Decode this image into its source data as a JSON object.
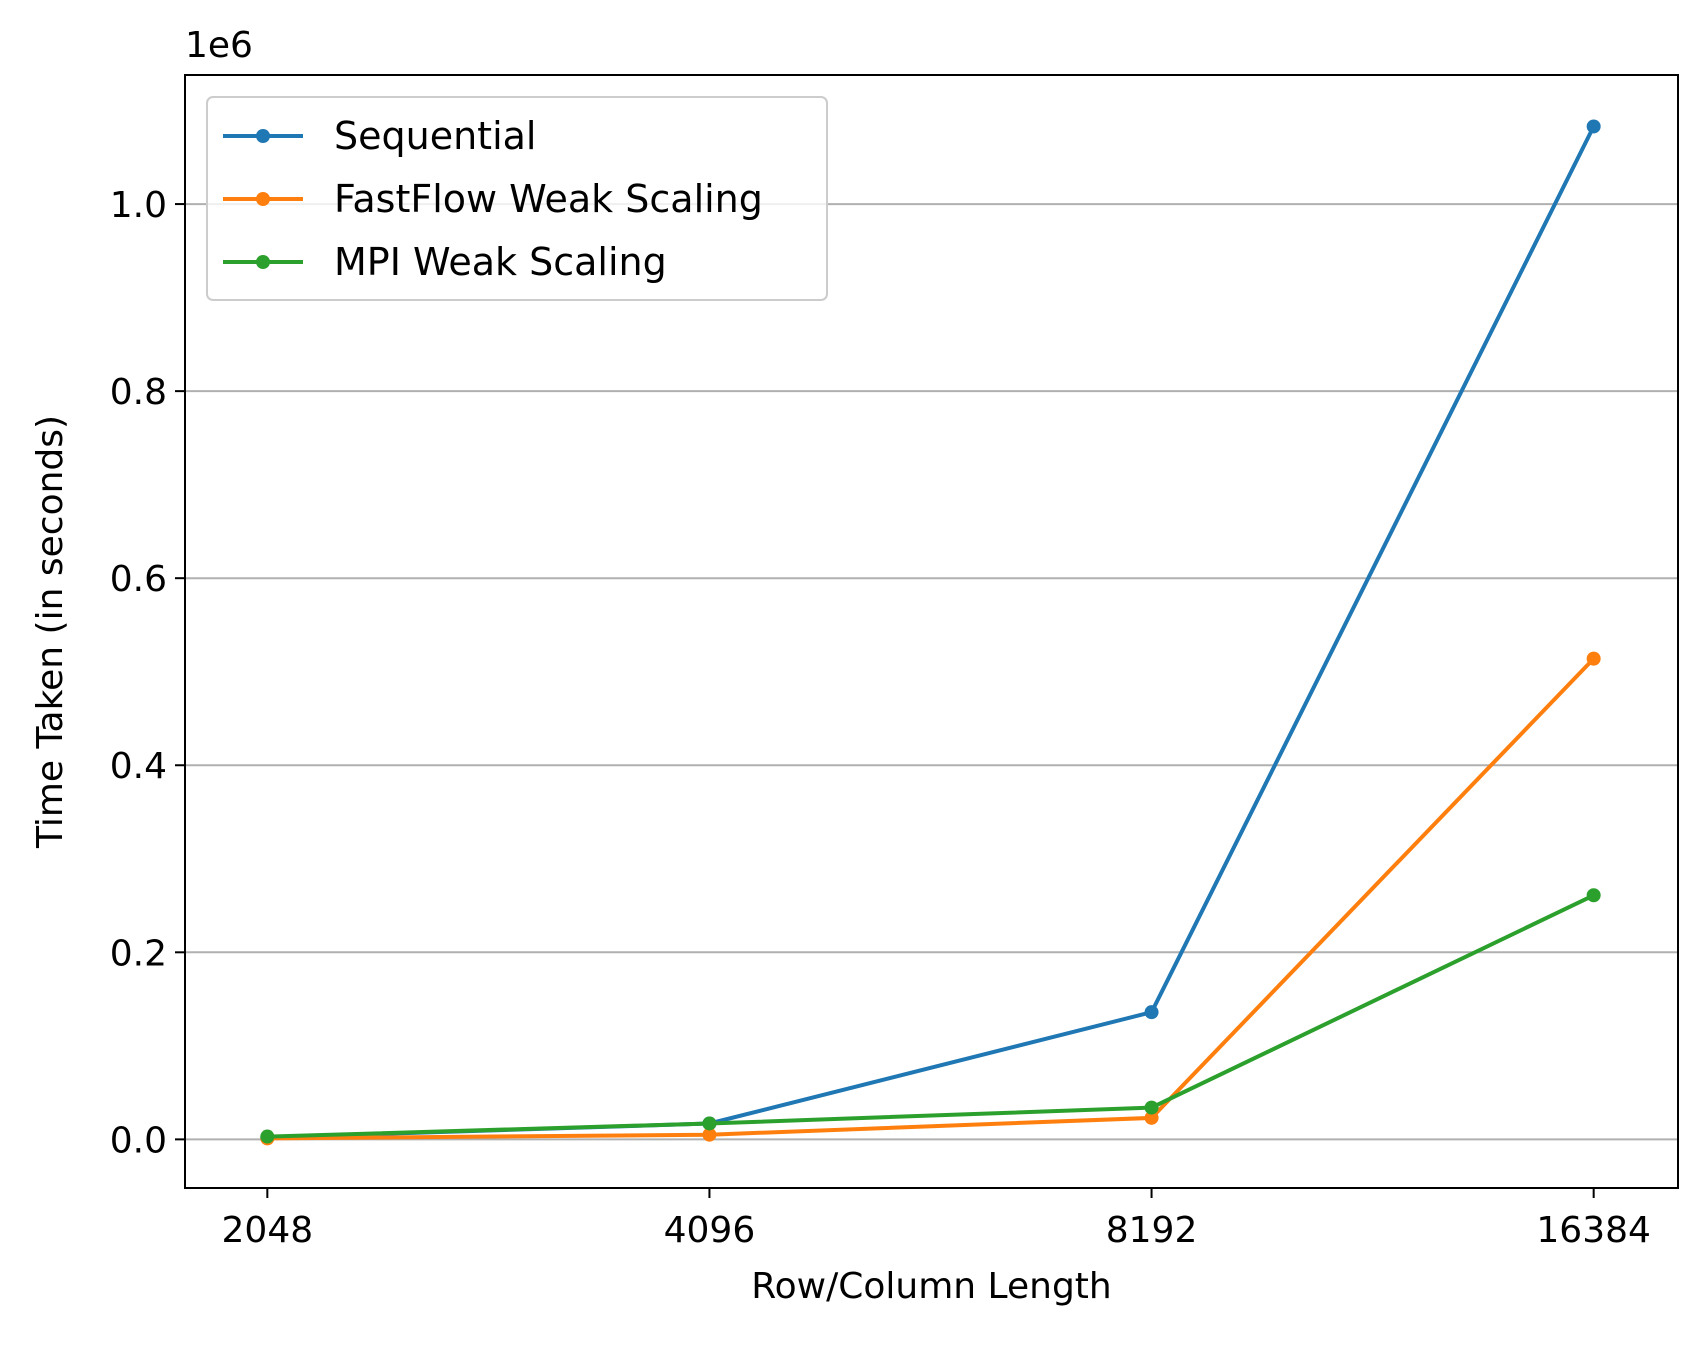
{
  "chart_data": {
    "type": "line",
    "xlabel": "Row/Column Length",
    "ylabel": "Time Taken (in seconds)",
    "y_offset_label": "1e6",
    "x": [
      2048,
      4096,
      8192,
      16384
    ],
    "x_tick_labels": [
      "2048",
      "4096",
      "8192",
      "16384"
    ],
    "x_scale": "log2",
    "xlim": [
      1800,
      18700
    ],
    "ylim": [
      -52000,
      1138000
    ],
    "y_ticks": [
      0,
      200000,
      400000,
      600000,
      800000,
      1000000
    ],
    "y_tick_labels": [
      "0.0",
      "0.2",
      "0.4",
      "0.6",
      "0.8",
      "1.0"
    ],
    "grid": "horizontal",
    "legend_position": "top-left",
    "series": [
      {
        "name": "Sequential",
        "color": "#1f77b4",
        "values": [
          2000,
          17000,
          136000,
          1083000
        ]
      },
      {
        "name": "FastFlow Weak Scaling",
        "color": "#ff7f0e",
        "values": [
          1000,
          5000,
          23000,
          514000
        ]
      },
      {
        "name": "MPI Weak Scaling",
        "color": "#2ca02c",
        "values": [
          3000,
          17000,
          34000,
          261000
        ]
      }
    ]
  }
}
